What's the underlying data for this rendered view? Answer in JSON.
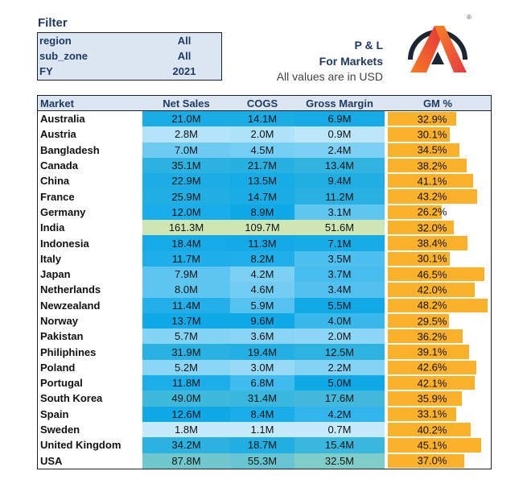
{
  "filter": {
    "title": "Filter",
    "rows": [
      {
        "key": "region",
        "value": "All"
      },
      {
        "key": "sub_zone",
        "value": "All"
      },
      {
        "key": "FY",
        "value": "2021"
      }
    ]
  },
  "header": {
    "title": "P & L",
    "subtitle": "For Markets",
    "note": "All values are in USD"
  },
  "logo": {
    "registered": "®"
  },
  "colors": {
    "low": "#c4eafb",
    "mid": "#0fa9e8",
    "high": "#cde6b4",
    "bar": "#fbb12a"
  },
  "table": {
    "columns": [
      "Market",
      "Net Sales",
      "COGS",
      "Gross Margin",
      "GM %"
    ],
    "rows": [
      [
        "Australia",
        "21.0M",
        "14.1M",
        "6.9M",
        "32.9%"
      ],
      [
        "Austria",
        "2.8M",
        "2.0M",
        "0.9M",
        "30.1%"
      ],
      [
        "Bangladesh",
        "7.0M",
        "4.5M",
        "2.4M",
        "34.5%"
      ],
      [
        "Canada",
        "35.1M",
        "21.7M",
        "13.4M",
        "38.2%"
      ],
      [
        "China",
        "22.9M",
        "13.5M",
        "9.4M",
        "41.1%"
      ],
      [
        "France",
        "25.9M",
        "14.7M",
        "11.2M",
        "43.2%"
      ],
      [
        "Germany",
        "12.0M",
        "8.9M",
        "3.1M",
        "26.2%"
      ],
      [
        "India",
        "161.3M",
        "109.7M",
        "51.6M",
        "32.0%"
      ],
      [
        "Indonesia",
        "18.4M",
        "11.3M",
        "7.1M",
        "38.4%"
      ],
      [
        "Italy",
        "11.7M",
        "8.2M",
        "3.5M",
        "30.1%"
      ],
      [
        "Japan",
        "7.9M",
        "4.2M",
        "3.7M",
        "46.5%"
      ],
      [
        "Netherlands",
        "8.0M",
        "4.6M",
        "3.4M",
        "42.0%"
      ],
      [
        "Newzealand",
        "11.4M",
        "5.9M",
        "5.5M",
        "48.2%"
      ],
      [
        "Norway",
        "13.7M",
        "9.6M",
        "4.0M",
        "29.5%"
      ],
      [
        "Pakistan",
        "5.7M",
        "3.6M",
        "2.0M",
        "36.2%"
      ],
      [
        "Philiphines",
        "31.9M",
        "19.4M",
        "12.5M",
        "39.1%"
      ],
      [
        "Poland",
        "5.2M",
        "3.0M",
        "2.2M",
        "42.6%"
      ],
      [
        "Portugal",
        "11.8M",
        "6.8M",
        "5.0M",
        "42.1%"
      ],
      [
        "South Korea",
        "49.0M",
        "31.4M",
        "17.6M",
        "35.9%"
      ],
      [
        "Spain",
        "12.6M",
        "8.4M",
        "4.2M",
        "33.1%"
      ],
      [
        "Sweden",
        "1.8M",
        "1.1M",
        "0.7M",
        "40.2%"
      ],
      [
        "United Kingdom",
        "34.2M",
        "18.7M",
        "15.4M",
        "45.1%"
      ],
      [
        "USA",
        "87.8M",
        "55.3M",
        "32.5M",
        "37.0%"
      ]
    ]
  }
}
